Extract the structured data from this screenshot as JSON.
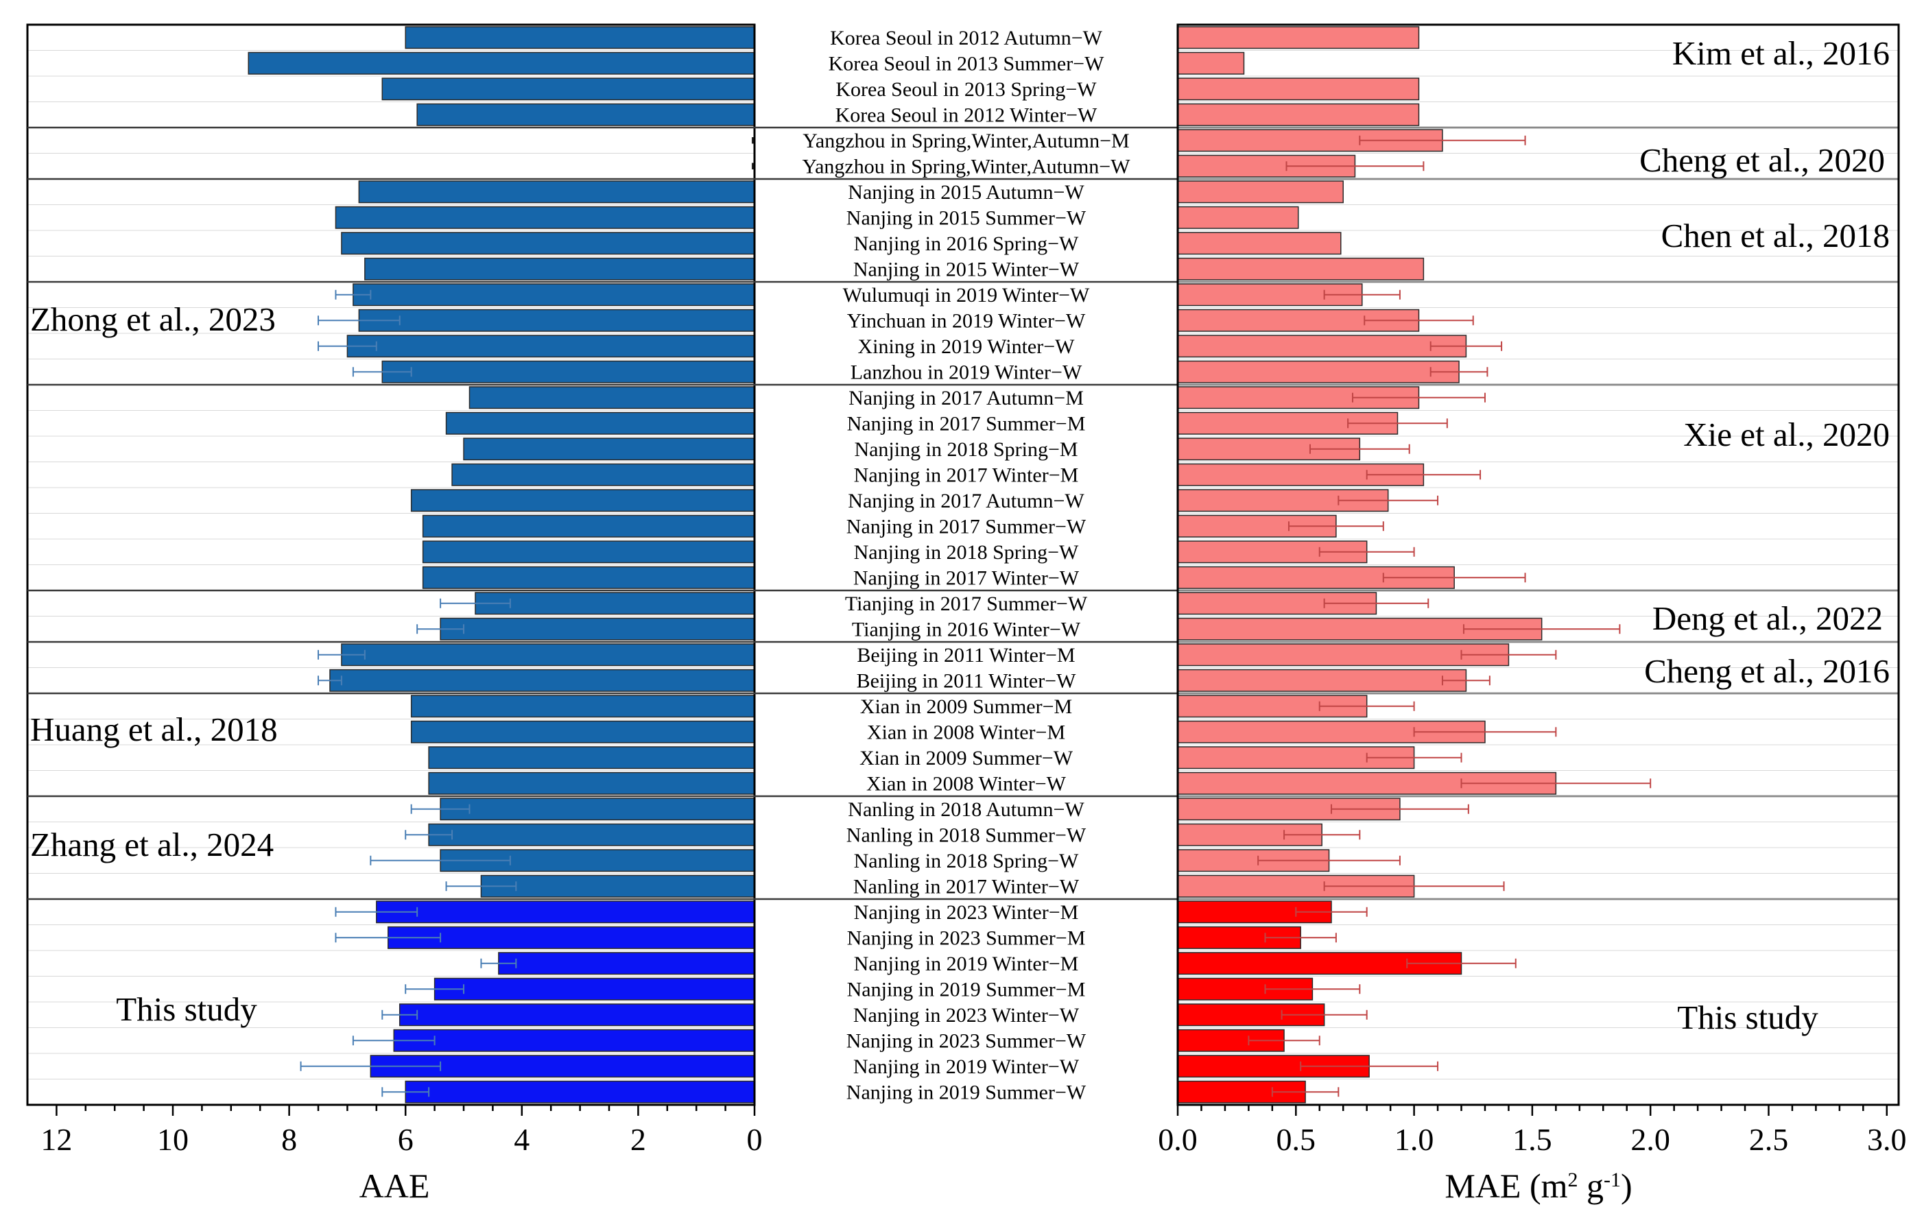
{
  "chart_data": {
    "type": "bar",
    "orientation": "horizontal",
    "categories": [
      "Korea Seoul in 2012 Autumn−W",
      "Korea Seoul in 2013 Summer−W",
      "Korea Seoul in 2013 Spring−W",
      "Korea Seoul in 2012 Winter−W",
      "Yangzhou in Spring,Winter,Autumn−M",
      "Yangzhou in Spring,Winter,Autumn−W",
      "Nanjing in 2015 Autumn−W",
      "Nanjing in 2015 Summer−W",
      "Nanjing in 2016 Spring−W",
      "Nanjing in 2015 Winter−W",
      "Wulumuqi in 2019 Winter−W",
      "Yinchuan in 2019 Winter−W",
      "Xining in 2019 Winter−W",
      "Lanzhou in 2019 Winter−W",
      "Nanjing in 2017 Autumn−M",
      "Nanjing in 2017 Summer−M",
      "Nanjing in 2018 Spring−M",
      "Nanjing in 2017 Winter−M",
      "Nanjing in 2017 Autumn−W",
      "Nanjing in 2017 Summer−W",
      "Nanjing in 2018 Spring−W",
      "Nanjing in 2017 Winter−W",
      "Tianjing in 2017 Summer−W",
      "Tianjing in 2016 Winter−W",
      "Beijing in 2011 Winter−M",
      "Beijing in 2011 Winter−W",
      "Xian in 2009 Summer−M",
      "Xian in 2008 Winter−M",
      "Xian in 2009 Summer−W",
      "Xian in 2008 Winter−W",
      "Nanling in 2018 Autumn−W",
      "Nanling in 2018 Summer−W",
      "Nanling in 2018 Spring−W",
      "Nanling in 2017 Winter−W",
      "Nanjing in 2023 Winter−M",
      "Nanjing in 2023 Summer−M",
      "Nanjing in 2019 Winter−M",
      "Nanjing in 2019 Summer−M",
      "Nanjing in 2023 Winter−W",
      "Nanjing in 2023 Summer−W",
      "Nanjing in 2019 Winter−W",
      "Nanjing in 2019 Summer−W"
    ],
    "series": [
      {
        "name": "AAE",
        "values": [
          6.0,
          8.7,
          6.4,
          5.8,
          null,
          null,
          6.8,
          7.2,
          7.1,
          6.7,
          6.9,
          6.8,
          7.0,
          6.4,
          4.9,
          5.3,
          5.0,
          5.2,
          5.9,
          5.7,
          5.7,
          5.7,
          4.8,
          5.4,
          7.1,
          7.3,
          5.9,
          5.9,
          5.6,
          5.6,
          5.4,
          5.6,
          5.4,
          4.7,
          6.5,
          6.3,
          4.4,
          5.5,
          6.1,
          6.2,
          6.6,
          6.0
        ],
        "errors": [
          0,
          0,
          0,
          0,
          null,
          null,
          0,
          0,
          0,
          0,
          0.3,
          0.7,
          0.5,
          0.5,
          0,
          0,
          0,
          0,
          0,
          0,
          0,
          0,
          0.6,
          0.4,
          0.4,
          0.2,
          0,
          0,
          0,
          0,
          0.5,
          0.4,
          1.2,
          0.6,
          0.7,
          0.9,
          0.3,
          0.5,
          0.3,
          0.7,
          1.2,
          0.4
        ]
      },
      {
        "name": "MAE",
        "values": [
          1.02,
          0.28,
          1.02,
          1.02,
          1.12,
          0.75,
          0.7,
          0.51,
          0.69,
          1.04,
          0.78,
          1.02,
          1.22,
          1.19,
          1.02,
          0.93,
          0.77,
          1.04,
          0.89,
          0.67,
          0.8,
          1.17,
          0.84,
          1.54,
          1.4,
          1.22,
          0.8,
          1.3,
          1.0,
          1.6,
          0.94,
          0.61,
          0.64,
          1.0,
          0.65,
          0.52,
          1.2,
          0.57,
          0.62,
          0.45,
          0.81,
          0.54
        ],
        "errors": [
          0,
          0,
          0,
          0,
          0.35,
          0.29,
          0,
          0,
          0,
          0,
          0.16,
          0.23,
          0.15,
          0.12,
          0.28,
          0.21,
          0.21,
          0.24,
          0.21,
          0.2,
          0.2,
          0.3,
          0.22,
          0.33,
          0.2,
          0.1,
          0.2,
          0.3,
          0.2,
          0.4,
          0.29,
          0.16,
          0.3,
          0.38,
          0.15,
          0.15,
          0.23,
          0.2,
          0.18,
          0.15,
          0.29,
          0.14
        ]
      }
    ],
    "groups": [
      {
        "label": "Kim et al., 2016",
        "start": 0,
        "end": 3,
        "color": "#1666aa",
        "mae_color": "#f87f7f"
      },
      {
        "label": "Cheng et al., 2020",
        "start": 4,
        "end": 5,
        "color": "#1666aa",
        "mae_color": "#f87f7f"
      },
      {
        "label": "Chen et al., 2018",
        "start": 6,
        "end": 9,
        "color": "#1666aa",
        "mae_color": "#f87f7f"
      },
      {
        "label": "Zhong et al., 2023",
        "start": 10,
        "end": 13,
        "color": "#1666aa",
        "mae_color": "#f87f7f"
      },
      {
        "label": "Xie et al., 2020",
        "start": 14,
        "end": 21,
        "color": "#1666aa",
        "mae_color": "#f87f7f"
      },
      {
        "label": "Deng et al., 2022",
        "start": 22,
        "end": 23,
        "color": "#1666aa",
        "mae_color": "#f87f7f"
      },
      {
        "label": "Cheng et al., 2016",
        "start": 24,
        "end": 25,
        "color": "#1666aa",
        "mae_color": "#f87f7f"
      },
      {
        "label": "Huang et al., 2018",
        "start": 26,
        "end": 29,
        "color": "#1666aa",
        "mae_color": "#f87f7f"
      },
      {
        "label": "Zhang et al., 2024",
        "start": 30,
        "end": 33,
        "color": "#1666aa",
        "mae_color": "#f87f7f"
      },
      {
        "label": "This study",
        "start": 34,
        "end": 41,
        "color": "#0a14f5",
        "mae_color": "#ff0000"
      }
    ],
    "left_axis": {
      "xlabel": "AAE",
      "xlim": [
        12.5,
        0
      ],
      "ticks": [
        12,
        10,
        8,
        6,
        4,
        2,
        0
      ],
      "tick_labels": [
        "12",
        "10",
        "8",
        "6",
        "4",
        "2",
        "0"
      ]
    },
    "right_axis": {
      "xlabel_main": "MAE (m",
      "xlabel_sup1": "2",
      "xlabel_mid": " g",
      "xlabel_sup2": "-1",
      "xlabel_end": ")",
      "xlim": [
        0,
        3.05
      ],
      "ticks": [
        0,
        0.5,
        1,
        1.5,
        2,
        2.5,
        3
      ],
      "tick_labels": [
        "0.0",
        "0.5",
        "1.0",
        "1.5",
        "2.0",
        "2.5",
        "3.0"
      ]
    },
    "left_group_labels": {
      "zhong": "Zhong et al., 2023",
      "huang": "Huang et al., 2018",
      "zhang": "Zhang et al., 2024",
      "this": "This study"
    },
    "right_group_labels": {
      "kim": "Kim et al., 2016",
      "cheng2020": "Cheng et al., 2020",
      "chen": "Chen et al., 2018",
      "xie": "Xie et al., 2020",
      "deng": "Deng et al., 2022",
      "cheng2016": "Cheng et al., 2016",
      "this": "This study"
    },
    "colors": {
      "study_blue": "#1666aa",
      "this_blue": "#0a14f5",
      "study_red": "#f87f7f",
      "this_red": "#ff0000",
      "err_left": "#4a7fb5",
      "err_right": "#c04545"
    }
  }
}
